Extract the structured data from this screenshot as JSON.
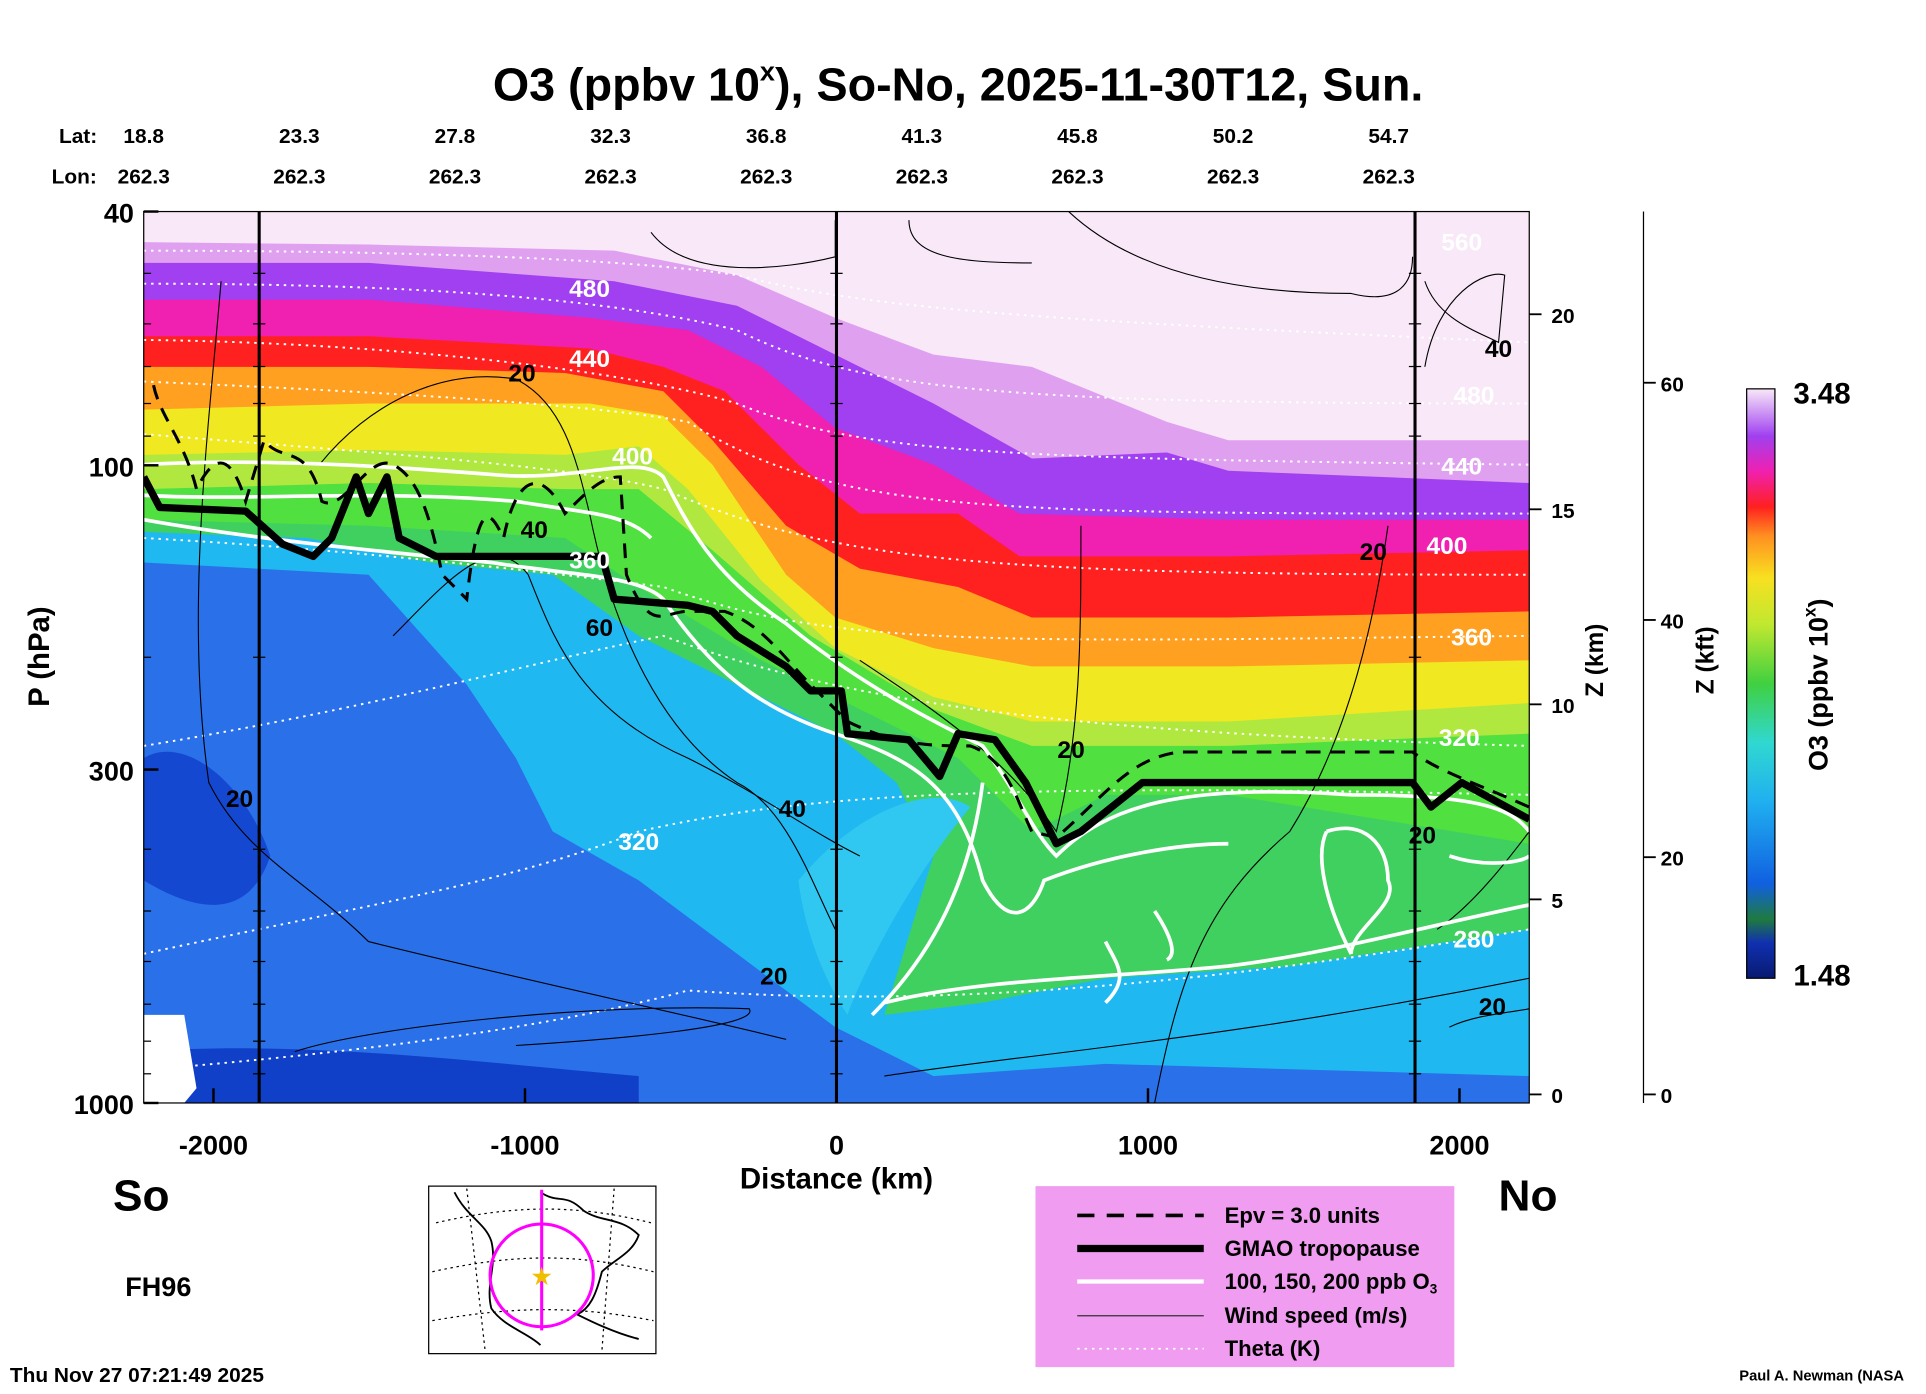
{
  "title": {
    "prefix": "O3 (ppbv 10",
    "superscript": "x",
    "suffix": "), So-No, 2025-11-30T12, Sun."
  },
  "lat_label": "Lat:",
  "lon_label": "Lon:",
  "lats": [
    "18.8",
    "23.3",
    "27.8",
    "32.3",
    "36.8",
    "41.3",
    "45.8",
    "50.2",
    "54.7"
  ],
  "lons": [
    "262.3",
    "262.3",
    "262.3",
    "262.3",
    "262.3",
    "262.3",
    "262.3",
    "262.3",
    "262.3"
  ],
  "south_label": "So",
  "north_label": "No",
  "forecast_hour": "FH96",
  "timestamp": "Thu Nov 27 07:21:49 2025",
  "credit": "Paul A. Newman (NASA",
  "legend": {
    "items": [
      "Epv = 3.0 units",
      "GMAO tropopause",
      "100, 150, 200 ppb O",
      "Wind speed (m/s)",
      "Theta (K)"
    ],
    "o3_subscript": "3",
    "background": "#f09cf0"
  },
  "chart_data": {
    "type": "heatmap",
    "title": "O3 (ppbv 10^x), So-No, 2025-11-30T12, Sun.",
    "xlabel": "Distance (km)",
    "ylabel": "P (hPa)",
    "y2label": "Z (km)",
    "y3label": "Z (kft)",
    "colorbar_label": "O3 (ppbv 10",
    "colorbar_label_sup": "x",
    "colorbar_label_end": ")",
    "colorbar_range": [
      "1.48",
      "3.48"
    ],
    "xlim": [
      -2230,
      2230
    ],
    "ylim": [
      1000,
      40
    ],
    "x_ticks": [
      "-2000",
      "-1000",
      "0",
      "1000",
      "2000"
    ],
    "y_ticks": [
      "40",
      "100",
      "300",
      "1000"
    ],
    "z_km_ticks": [
      "0",
      "5",
      "10",
      "15",
      "20"
    ],
    "z_kft_ticks": [
      "0",
      "20",
      "40",
      "60"
    ],
    "wind_labels": [
      "20",
      "20",
      "40",
      "60",
      "40",
      "20",
      "20",
      "20",
      "20",
      "40",
      "20"
    ],
    "theta_labels": [
      "480",
      "440",
      "400",
      "360",
      "320",
      "560",
      "480",
      "440",
      "400",
      "360",
      "320",
      "280"
    ],
    "tropopause_hpa": {
      "distance_km": [
        -2230,
        -2000,
        -1800,
        -1600,
        -1500,
        -1400,
        -1300,
        -900,
        -700,
        -400,
        -200,
        0,
        200,
        400,
        600,
        700,
        800,
        1000,
        1800,
        1900,
        2000,
        2230
      ],
      "pressure": [
        95,
        110,
        112,
        125,
        100,
        105,
        132,
        132,
        165,
        175,
        195,
        215,
        240,
        290,
        270,
        330,
        300,
        280,
        280,
        300,
        280,
        310
      ]
    },
    "colors": [
      "#081a70",
      "#1040c8",
      "#2a70e8",
      "#20a8f0",
      "#30d8e8",
      "#40d060",
      "#80e040",
      "#e8f020",
      "#ffb020",
      "#ff3020",
      "#f020b0",
      "#a040f0",
      "#e0a0f0",
      "#f8e8f8"
    ]
  }
}
